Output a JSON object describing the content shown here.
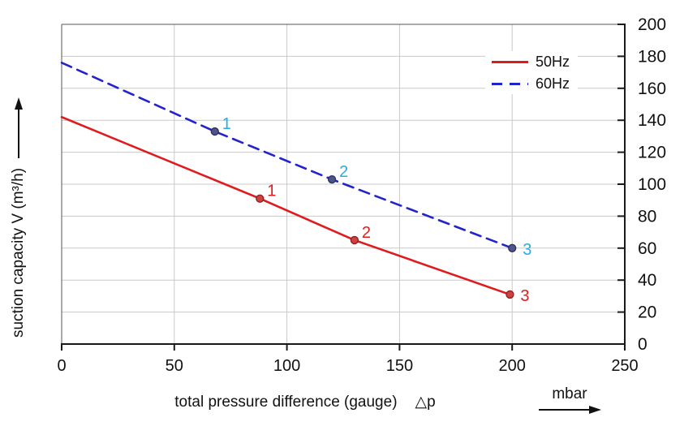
{
  "chart_data": {
    "type": "line",
    "title": "",
    "xlabel": "total pressure difference (gauge)",
    "xlabel_symbol": "△p",
    "x_unit": "mbar",
    "ylabel": "suction capacity V (m³/h)",
    "xlim": [
      0,
      250
    ],
    "ylim": [
      0,
      200
    ],
    "x_ticks": [
      0,
      50,
      100,
      150,
      200,
      250
    ],
    "y_ticks": [
      0,
      20,
      40,
      60,
      80,
      100,
      120,
      140,
      160,
      180,
      200
    ],
    "grid": true,
    "y_axis_side": "right",
    "legend_position": "inside top-right",
    "series": [
      {
        "name": "50Hz",
        "color": "#e01b1e",
        "line_style": "solid",
        "label_color": "#e01b1e",
        "marker_fill": "#cf4040",
        "marker_stroke": "#8e1f1f",
        "points": [
          {
            "x": 0,
            "y": 142
          },
          {
            "x": 88,
            "y": 91,
            "label": "1"
          },
          {
            "x": 130,
            "y": 65,
            "label": "2"
          },
          {
            "x": 199,
            "y": 31,
            "label": "3",
            "label_pos": "right"
          }
        ]
      },
      {
        "name": "60Hz",
        "color": "#2323cb",
        "line_style": "dashed",
        "label_color": "#2aabe2",
        "marker_fill": "#4e5488",
        "marker_stroke": "#2c3058",
        "points": [
          {
            "x": 0,
            "y": 176
          },
          {
            "x": 68,
            "y": 133,
            "label": "1"
          },
          {
            "x": 120,
            "y": 103,
            "label": "2"
          },
          {
            "x": 200,
            "y": 60,
            "label": "3",
            "label_pos": "right"
          }
        ]
      }
    ]
  },
  "legend": {
    "items": [
      {
        "label": "50Hz"
      },
      {
        "label": "60Hz"
      }
    ]
  },
  "colors": {
    "background": "#ffffff",
    "grid": "#c9c9c9",
    "frame": "#555555",
    "axis": "#1a1a1a",
    "text": "#111111"
  }
}
